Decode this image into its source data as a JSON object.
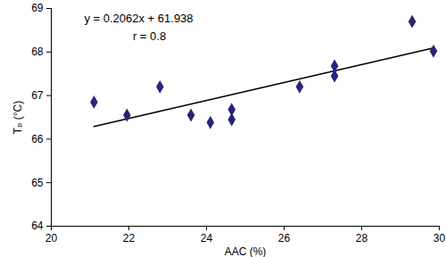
{
  "chart_data": {
    "type": "scatter",
    "x_label": "AAC (%)",
    "y_label": "Tₚ (°C)",
    "x": [
      21.1,
      21.95,
      22.8,
      23.6,
      24.1,
      24.65,
      24.65,
      26.4,
      27.3,
      27.3,
      29.3,
      29.85
    ],
    "values": [
      66.85,
      66.55,
      67.2,
      66.55,
      66.38,
      66.45,
      66.68,
      67.2,
      67.45,
      67.68,
      68.7,
      68.02
    ],
    "color": "#26247a",
    "marker": "diamond",
    "xlim": [
      20,
      30
    ],
    "xticks": [
      20,
      22,
      24,
      26,
      28,
      30
    ],
    "ylim": [
      64,
      69
    ],
    "yticks": [
      64,
      65,
      66,
      67,
      68,
      69
    ],
    "trendline": {
      "slope": 0.2062,
      "intercept": 61.938,
      "color": "#000000"
    },
    "annotations": [
      "y = 0.2062x + 61.938",
      "r = 0.8"
    ]
  }
}
